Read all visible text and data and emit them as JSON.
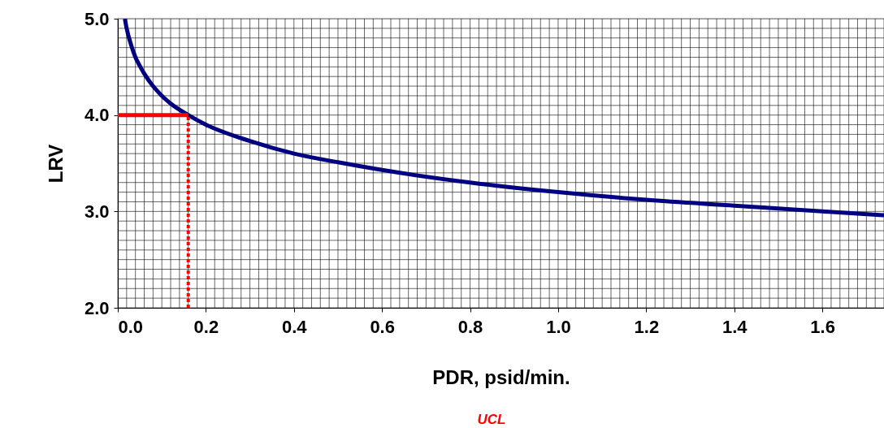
{
  "chart_data": {
    "type": "line",
    "xlabel": "PDR, psid/min.",
    "ylabel": "LRV",
    "xlim": [
      0,
      1.74
    ],
    "ylim": [
      2.0,
      5.0
    ],
    "xticks": [
      {
        "value": 0,
        "label": "0.0"
      },
      0.2,
      0.4,
      0.6,
      0.8,
      {
        "value": 1,
        "label": "1.0"
      },
      1.2,
      1.4,
      1.6
    ],
    "yticks": [
      {
        "value": 2,
        "label": "2.0"
      },
      {
        "value": 3,
        "label": "3.0"
      },
      {
        "value": 4,
        "label": "4.0"
      },
      {
        "value": 5,
        "label": "5.0"
      }
    ],
    "grid": true,
    "marker": "none",
    "series": [
      {
        "color": "#000080",
        "line_style": "solid",
        "x": [
          0.016,
          0.02,
          0.03,
          0.04,
          0.05,
          0.06,
          0.08,
          0.1,
          0.12,
          0.16,
          0.2,
          0.3,
          0.4,
          0.5,
          0.6,
          0.8,
          1.0,
          1.2,
          1.4,
          1.6,
          1.74
        ],
        "values": [
          5.0,
          4.9,
          4.73,
          4.6,
          4.51,
          4.43,
          4.3,
          4.2,
          4.12,
          4.0,
          3.9,
          3.73,
          3.6,
          3.51,
          3.43,
          3.3,
          3.2,
          3.12,
          3.06,
          3.0,
          2.96
        ]
      },
      {
        "color": "#ff0000",
        "line_style": "solid",
        "x": [
          0,
          0.16
        ],
        "values": [
          4.0,
          4.0
        ]
      },
      {
        "color": "#ff0000",
        "line_style": "dotted",
        "x": [
          0.16,
          0.16
        ],
        "values": [
          2.0,
          4.0
        ]
      }
    ],
    "annotations": [
      "UCL"
    ]
  }
}
